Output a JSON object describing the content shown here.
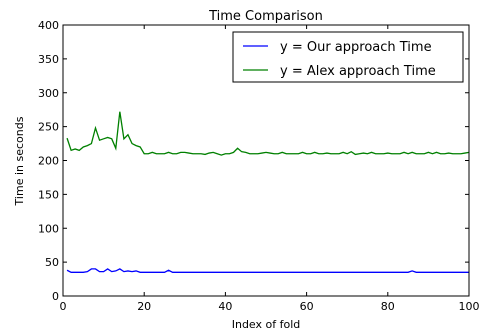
{
  "chart_data": {
    "type": "line",
    "title": "Time Comparison",
    "xlabel": "Index of fold",
    "ylabel": "Time in seconds",
    "xlim": [
      0,
      100
    ],
    "ylim": [
      0,
      400
    ],
    "xticks": [
      0,
      20,
      40,
      60,
      80,
      100
    ],
    "yticks": [
      0,
      50,
      100,
      150,
      200,
      250,
      300,
      350,
      400
    ],
    "legend_position": "top-right",
    "grid": false,
    "x": [
      1,
      2,
      3,
      4,
      5,
      6,
      7,
      8,
      9,
      10,
      11,
      12,
      13,
      14,
      15,
      16,
      17,
      18,
      19,
      20,
      21,
      22,
      23,
      24,
      25,
      26,
      27,
      28,
      29,
      30,
      31,
      32,
      33,
      34,
      35,
      36,
      37,
      38,
      39,
      40,
      41,
      42,
      43,
      44,
      45,
      46,
      47,
      48,
      49,
      50,
      51,
      52,
      53,
      54,
      55,
      56,
      57,
      58,
      59,
      60,
      61,
      62,
      63,
      64,
      65,
      66,
      67,
      68,
      69,
      70,
      71,
      72,
      73,
      74,
      75,
      76,
      77,
      78,
      79,
      80,
      81,
      82,
      83,
      84,
      85,
      86,
      87,
      88,
      89,
      90,
      91,
      92,
      93,
      94,
      95,
      96,
      97,
      98,
      99,
      100
    ],
    "series": [
      {
        "name": "y = Our approach Time",
        "color": "#0000ff",
        "values": [
          38,
          35,
          35,
          35,
          35,
          36,
          40,
          40,
          36,
          36,
          40,
          36,
          37,
          40,
          36,
          37,
          36,
          37,
          35,
          35,
          35,
          35,
          35,
          35,
          35,
          38,
          35,
          35,
          35,
          35,
          35,
          35,
          35,
          35,
          35,
          35,
          35,
          35,
          35,
          35,
          35,
          35,
          35,
          35,
          35,
          35,
          35,
          35,
          35,
          35,
          35,
          35,
          35,
          35,
          35,
          35,
          35,
          35,
          35,
          35,
          35,
          35,
          35,
          35,
          35,
          35,
          35,
          35,
          35,
          35,
          35,
          35,
          35,
          35,
          35,
          35,
          35,
          35,
          35,
          35,
          35,
          35,
          35,
          35,
          35,
          37,
          35,
          35,
          35,
          35,
          35,
          35,
          35,
          35,
          35,
          35,
          35,
          35,
          35,
          35
        ]
      },
      {
        "name": "y = Alex approach Time",
        "color": "#008000",
        "values": [
          233,
          215,
          217,
          215,
          220,
          222,
          225,
          248,
          230,
          232,
          234,
          232,
          218,
          272,
          232,
          238,
          225,
          222,
          220,
          210,
          210,
          212,
          210,
          210,
          210,
          212,
          210,
          210,
          212,
          212,
          211,
          210,
          210,
          210,
          209,
          211,
          212,
          210,
          208,
          210,
          210,
          212,
          218,
          213,
          212,
          210,
          210,
          210,
          211,
          212,
          211,
          210,
          210,
          212,
          210,
          210,
          210,
          210,
          212,
          210,
          210,
          212,
          210,
          210,
          211,
          210,
          210,
          210,
          212,
          210,
          213,
          209,
          210,
          211,
          210,
          212,
          210,
          210,
          210,
          211,
          210,
          210,
          210,
          212,
          210,
          212,
          210,
          210,
          210,
          212,
          210,
          212,
          210,
          210,
          211,
          210,
          210,
          210,
          211,
          212
        ]
      }
    ]
  }
}
